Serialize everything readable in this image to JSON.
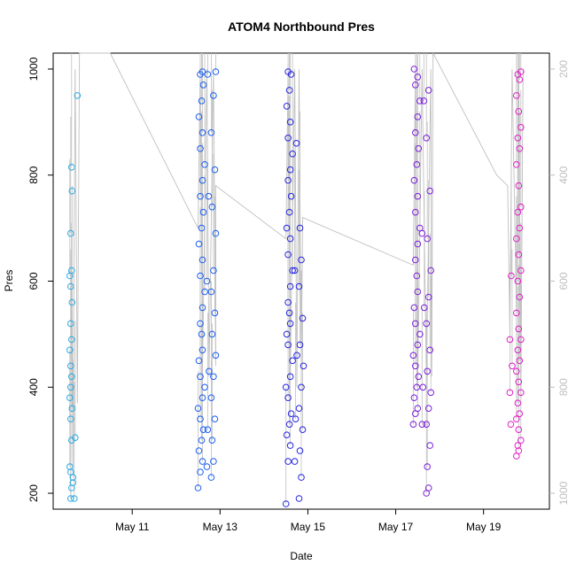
{
  "chart_data": {
    "type": "scatter",
    "title": "ATOM4 Northbound Pres",
    "xlabel": "Date",
    "ylabel": "Pres",
    "x_ticks": [
      "May 11",
      "May 13",
      "May 15",
      "May 17",
      "May 19"
    ],
    "x_tick_values": [
      11,
      13,
      15,
      17,
      19
    ],
    "xlim": [
      9.2,
      20.5
    ],
    "ylim": [
      170,
      1030
    ],
    "y_ticks": [
      200,
      400,
      600,
      800,
      1000
    ],
    "y2_ticks": [
      200,
      400,
      600,
      800,
      1000
    ],
    "y2lim": [
      1030,
      170
    ],
    "y2_axis": "inverted secondary axis (grey)",
    "grid": false,
    "line_color": "#c0c0c0",
    "series": [
      {
        "color": "#29a9e0",
        "points": [
          [
            9.6,
            190
          ],
          [
            9.62,
            210
          ],
          [
            9.65,
            230
          ],
          [
            9.6,
            240
          ],
          [
            9.58,
            250
          ],
          [
            9.62,
            300
          ],
          [
            9.7,
            305
          ],
          [
            9.6,
            340
          ],
          [
            9.63,
            360
          ],
          [
            9.58,
            380
          ],
          [
            9.6,
            400
          ],
          [
            9.62,
            420
          ],
          [
            9.6,
            440
          ],
          [
            9.58,
            470
          ],
          [
            9.62,
            490
          ],
          [
            9.6,
            520
          ],
          [
            9.63,
            560
          ],
          [
            9.6,
            590
          ],
          [
            9.58,
            610
          ],
          [
            9.62,
            620
          ],
          [
            9.6,
            690
          ],
          [
            9.63,
            770
          ],
          [
            9.62,
            815
          ],
          [
            9.75,
            950
          ],
          [
            9.68,
            190
          ],
          [
            9.65,
            220
          ]
        ]
      },
      {
        "color": "#1a5ef0",
        "points": [
          [
            12.5,
            210
          ],
          [
            12.55,
            240
          ],
          [
            12.6,
            260
          ],
          [
            12.52,
            280
          ],
          [
            12.58,
            300
          ],
          [
            12.62,
            320
          ],
          [
            12.55,
            340
          ],
          [
            12.5,
            360
          ],
          [
            12.6,
            380
          ],
          [
            12.65,
            400
          ],
          [
            12.55,
            420
          ],
          [
            12.52,
            450
          ],
          [
            12.6,
            470
          ],
          [
            12.58,
            500
          ],
          [
            12.55,
            520
          ],
          [
            12.6,
            550
          ],
          [
            12.65,
            580
          ],
          [
            12.55,
            610
          ],
          [
            12.6,
            640
          ],
          [
            12.52,
            670
          ],
          [
            12.58,
            700
          ],
          [
            12.62,
            730
          ],
          [
            12.55,
            760
          ],
          [
            12.6,
            790
          ],
          [
            12.65,
            820
          ],
          [
            12.55,
            850
          ],
          [
            12.6,
            880
          ],
          [
            12.52,
            910
          ],
          [
            12.58,
            940
          ],
          [
            12.62,
            970
          ],
          [
            12.55,
            990
          ],
          [
            12.6,
            995
          ],
          [
            12.8,
            230
          ],
          [
            12.85,
            260
          ],
          [
            12.82,
            300
          ],
          [
            12.88,
            340
          ],
          [
            12.8,
            380
          ],
          [
            12.85,
            420
          ],
          [
            12.9,
            460
          ],
          [
            12.82,
            500
          ],
          [
            12.88,
            540
          ],
          [
            12.8,
            580
          ],
          [
            12.85,
            620
          ],
          [
            12.9,
            690
          ],
          [
            12.82,
            740
          ],
          [
            12.88,
            810
          ],
          [
            12.8,
            880
          ],
          [
            12.85,
            950
          ],
          [
            12.9,
            995
          ],
          [
            12.7,
            250
          ],
          [
            12.72,
            320
          ],
          [
            12.75,
            430
          ],
          [
            12.7,
            600
          ],
          [
            12.74,
            760
          ],
          [
            12.72,
            990
          ]
        ]
      },
      {
        "color": "#2424e0",
        "points": [
          [
            14.5,
            180
          ],
          [
            14.55,
            260
          ],
          [
            14.6,
            290
          ],
          [
            14.52,
            310
          ],
          [
            14.58,
            330
          ],
          [
            14.62,
            350
          ],
          [
            14.55,
            380
          ],
          [
            14.5,
            400
          ],
          [
            14.6,
            420
          ],
          [
            14.65,
            450
          ],
          [
            14.55,
            480
          ],
          [
            14.52,
            500
          ],
          [
            14.6,
            520
          ],
          [
            14.58,
            540
          ],
          [
            14.55,
            560
          ],
          [
            14.6,
            590
          ],
          [
            14.65,
            620
          ],
          [
            14.55,
            650
          ],
          [
            14.6,
            680
          ],
          [
            14.52,
            700
          ],
          [
            14.58,
            730
          ],
          [
            14.62,
            760
          ],
          [
            14.55,
            790
          ],
          [
            14.6,
            810
          ],
          [
            14.65,
            840
          ],
          [
            14.55,
            870
          ],
          [
            14.6,
            900
          ],
          [
            14.52,
            930
          ],
          [
            14.58,
            960
          ],
          [
            14.62,
            990
          ],
          [
            14.55,
            995
          ],
          [
            14.8,
            190
          ],
          [
            14.85,
            230
          ],
          [
            14.82,
            280
          ],
          [
            14.88,
            320
          ],
          [
            14.8,
            360
          ],
          [
            14.85,
            400
          ],
          [
            14.9,
            440
          ],
          [
            14.82,
            480
          ],
          [
            14.88,
            530
          ],
          [
            14.8,
            590
          ],
          [
            14.85,
            640
          ],
          [
            14.82,
            700
          ],
          [
            14.7,
            260
          ],
          [
            14.72,
            340
          ],
          [
            14.75,
            460
          ],
          [
            14.7,
            620
          ],
          [
            14.74,
            860
          ]
        ]
      },
      {
        "color": "#7a1fd8",
        "points": [
          [
            17.4,
            330
          ],
          [
            17.45,
            350
          ],
          [
            17.5,
            360
          ],
          [
            17.42,
            380
          ],
          [
            17.48,
            400
          ],
          [
            17.52,
            420
          ],
          [
            17.45,
            440
          ],
          [
            17.4,
            460
          ],
          [
            17.5,
            480
          ],
          [
            17.55,
            500
          ],
          [
            17.45,
            520
          ],
          [
            17.42,
            550
          ],
          [
            17.5,
            580
          ],
          [
            17.48,
            610
          ],
          [
            17.45,
            640
          ],
          [
            17.5,
            670
          ],
          [
            17.55,
            700
          ],
          [
            17.45,
            730
          ],
          [
            17.5,
            760
          ],
          [
            17.42,
            790
          ],
          [
            17.48,
            820
          ],
          [
            17.52,
            850
          ],
          [
            17.45,
            880
          ],
          [
            17.5,
            910
          ],
          [
            17.55,
            940
          ],
          [
            17.45,
            970
          ],
          [
            17.5,
            985
          ],
          [
            17.42,
            1000
          ],
          [
            17.7,
            200
          ],
          [
            17.75,
            210
          ],
          [
            17.72,
            250
          ],
          [
            17.78,
            290
          ],
          [
            17.7,
            330
          ],
          [
            17.75,
            360
          ],
          [
            17.8,
            390
          ],
          [
            17.72,
            430
          ],
          [
            17.78,
            470
          ],
          [
            17.7,
            520
          ],
          [
            17.75,
            570
          ],
          [
            17.8,
            620
          ],
          [
            17.72,
            680
          ],
          [
            17.78,
            770
          ],
          [
            17.7,
            870
          ],
          [
            17.75,
            960
          ],
          [
            17.6,
            330
          ],
          [
            17.62,
            400
          ],
          [
            17.65,
            550
          ],
          [
            17.6,
            690
          ],
          [
            17.64,
            940
          ]
        ]
      },
      {
        "color": "#e020c8",
        "points": [
          [
            19.6,
            390
          ],
          [
            19.62,
            330
          ],
          [
            19.65,
            440
          ],
          [
            19.6,
            490
          ],
          [
            19.63,
            610
          ],
          [
            19.75,
            270
          ],
          [
            19.8,
            280
          ],
          [
            19.78,
            290
          ],
          [
            19.85,
            300
          ],
          [
            19.8,
            320
          ],
          [
            19.75,
            340
          ],
          [
            19.82,
            350
          ],
          [
            19.78,
            370
          ],
          [
            19.85,
            390
          ],
          [
            19.8,
            410
          ],
          [
            19.75,
            430
          ],
          [
            19.82,
            450
          ],
          [
            19.78,
            470
          ],
          [
            19.85,
            490
          ],
          [
            19.8,
            510
          ],
          [
            19.75,
            540
          ],
          [
            19.82,
            570
          ],
          [
            19.78,
            600
          ],
          [
            19.85,
            620
          ],
          [
            19.8,
            650
          ],
          [
            19.75,
            680
          ],
          [
            19.82,
            700
          ],
          [
            19.78,
            730
          ],
          [
            19.85,
            740
          ],
          [
            19.8,
            780
          ],
          [
            19.75,
            820
          ],
          [
            19.82,
            850
          ],
          [
            19.78,
            870
          ],
          [
            19.85,
            890
          ],
          [
            19.8,
            920
          ],
          [
            19.75,
            950
          ],
          [
            19.82,
            980
          ],
          [
            19.78,
            990
          ],
          [
            19.85,
            995
          ]
        ]
      }
    ],
    "path_points": [
      [
        9.6,
        190
      ],
      [
        9.62,
        700
      ],
      [
        9.65,
        250
      ],
      [
        9.7,
        1000
      ],
      [
        9.75,
        370
      ],
      [
        9.8,
        1030
      ],
      [
        10.5,
        1030
      ],
      [
        12.5,
        700
      ],
      [
        12.55,
        1000
      ],
      [
        12.6,
        430
      ],
      [
        12.7,
        1000
      ],
      [
        12.75,
        420
      ],
      [
        12.85,
        1000
      ],
      [
        12.9,
        440
      ],
      [
        12.9,
        780
      ],
      [
        14.5,
        680
      ],
      [
        14.55,
        1000
      ],
      [
        14.6,
        420
      ],
      [
        14.7,
        1000
      ],
      [
        14.75,
        400
      ],
      [
        14.8,
        1000
      ],
      [
        14.85,
        420
      ],
      [
        14.88,
        720
      ],
      [
        17.4,
        630
      ],
      [
        17.45,
        1000
      ],
      [
        17.5,
        400
      ],
      [
        17.6,
        1000
      ],
      [
        17.7,
        410
      ],
      [
        17.8,
        1000
      ],
      [
        17.82,
        420
      ],
      [
        17.85,
        1030
      ],
      [
        19.3,
        800
      ],
      [
        19.55,
        780
      ],
      [
        19.6,
        500
      ],
      [
        19.65,
        1000
      ],
      [
        19.75,
        540
      ],
      [
        19.8,
        1000
      ],
      [
        19.85,
        380
      ],
      [
        19.9,
        1000
      ]
    ]
  }
}
